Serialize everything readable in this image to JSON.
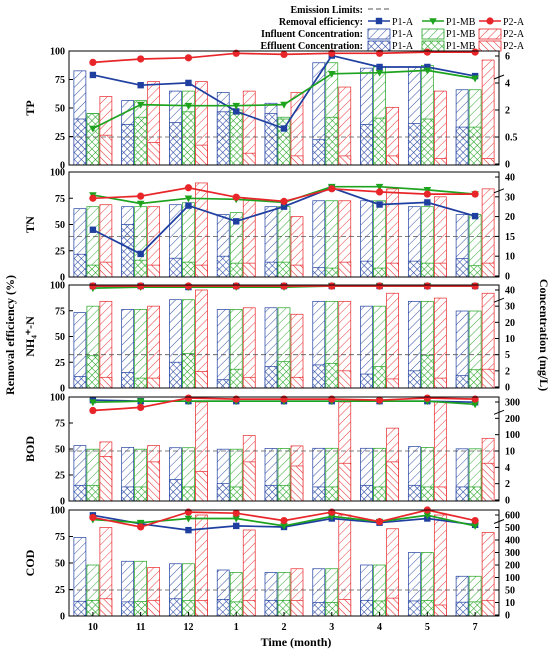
{
  "legend": {
    "emission_label": "Emission Limits:",
    "removal_label": "Removal efficiency:",
    "influent_label": "Influent Concentration:",
    "effluent_label": "Effluent Concentration:",
    "series_names": [
      "P1-A",
      "P1-MB",
      "P2-A"
    ]
  },
  "axes": {
    "left_title": "Removal efficiency (%)",
    "right_title": "Concentration (mg/L)",
    "x_title": "Time (month)"
  },
  "colors": {
    "P1-A": "#1f3fa0",
    "P1-MB": "#1ea31e",
    "P2-A": "#e8262a",
    "limit": "#555555"
  },
  "chart_data": {
    "type": "bar",
    "categories": [
      "10",
      "11",
      "12",
      "1",
      "2",
      "3",
      "4",
      "5",
      "7"
    ],
    "panels": [
      {
        "name": "TP",
        "left_ylim": [
          0,
          100
        ],
        "left_ticks": [
          "0",
          "25",
          "50",
          "75",
          "100"
        ],
        "right_ticks": [
          {
            "label": "6",
            "value": 6
          },
          {
            "label": "4",
            "value": 4
          },
          {
            "label": "2",
            "value": 2
          },
          {
            "label": "0.5",
            "value": 0.5
          },
          {
            "label": "0",
            "value": 0
          }
        ],
        "emission_limit": "0.5",
        "removal": {
          "P1-A": [
            79,
            70,
            72,
            47,
            32,
            96,
            86,
            86,
            78
          ],
          "P1-MB": [
            32,
            53,
            52,
            52,
            53,
            80,
            81,
            83,
            76
          ],
          "P2-A": [
            90,
            93,
            94,
            98,
            97,
            98,
            98,
            99,
            99
          ]
        },
        "influent": {
          "P1-A": [
            4.9,
            2.7,
            3.4,
            3.3,
            2.5,
            5.5,
            5.1,
            5.2,
            3.5
          ],
          "P1-MB": [
            1.8,
            2.7,
            3.4,
            2.0,
            1.6,
            5.5,
            5.2,
            5.3,
            3.5
          ],
          "P2-A": [
            3.0,
            4.1,
            4.1,
            3.4,
            3.3,
            3.7,
            2.2,
            3.4,
            5.7
          ]
        },
        "effluent": {
          "P1-A": [
            1.5,
            1.2,
            1.3,
            1.9,
            1.8,
            0.45,
            1.2,
            1.25,
            1.05
          ],
          "P1-MB": [
            1.8,
            1.6,
            1.9,
            1.85,
            1.5,
            1.6,
            1.55,
            1.5,
            1.05
          ],
          "P2-A": [
            0.6,
            0.4,
            0.35,
            0.2,
            0.15,
            0.15,
            0.15,
            0.1,
            0.1
          ]
        }
      },
      {
        "name": "TN",
        "left_ylim": [
          0,
          100
        ],
        "left_ticks": [
          "0",
          "25",
          "50",
          "75",
          "100"
        ],
        "right_ticks": [
          {
            "label": "40",
            "value": 40
          },
          {
            "label": "30",
            "value": 30
          },
          {
            "label": "20",
            "value": 20
          },
          {
            "label": "15",
            "value": 15
          },
          {
            "label": "10",
            "value": 10
          },
          {
            "label": "0",
            "value": 0
          }
        ],
        "emission_limit": "15",
        "removal": {
          "P1-A": [
            45,
            22,
            68,
            53,
            67,
            85,
            69,
            71,
            58
          ],
          "P1-MB": [
            78,
            70,
            75,
            74,
            71,
            86,
            86,
            83,
            79
          ],
          "P2-A": [
            75,
            77,
            85,
            76,
            72,
            84,
            81,
            79,
            79
          ]
        },
        "influent": {
          "P1-A": [
            24,
            25,
            26,
            21,
            25,
            28,
            28,
            25,
            21
          ],
          "P1-MB": [
            25,
            25,
            27,
            22,
            25,
            28,
            28,
            25,
            21
          ],
          "P2-A": [
            26,
            25,
            37,
            29,
            20,
            28,
            34,
            30,
            34
          ]
        },
        "effluent": {
          "P1-A": [
            10.5,
            18,
            9,
            10,
            7,
            4.2,
            7.5,
            7.5,
            8.8
          ],
          "P1-MB": [
            5.5,
            8,
            7,
            6.5,
            7,
            4,
            4,
            6.5,
            5.2
          ],
          "P2-A": [
            7,
            5.5,
            5.5,
            6.5,
            5.5,
            7,
            6.5,
            6.5,
            6.5
          ]
        }
      },
      {
        "name": "NH₄⁺-N",
        "left_ylim": [
          0,
          100
        ],
        "left_ticks": [
          "0",
          "25",
          "50",
          "75",
          "100"
        ],
        "right_ticks": [
          {
            "label": "40",
            "value": 40
          },
          {
            "label": "30",
            "value": 30
          },
          {
            "label": "20",
            "value": 20
          },
          {
            "label": "10",
            "value": 10
          },
          {
            "label": "5",
            "value": 5
          },
          {
            "label": "2",
            "value": 2
          },
          {
            "label": "0",
            "value": 0
          }
        ],
        "emission_limit": "5",
        "removal": {
          "P1-A": [
            99,
            99,
            98,
            99,
            99,
            99,
            99,
            99,
            99
          ],
          "P1-MB": [
            97,
            98,
            98,
            98,
            98,
            99,
            99,
            99,
            99
          ],
          "P2-A": [
            99,
            99,
            99,
            99,
            99,
            99,
            99,
            99,
            99
          ]
        },
        "influent": {
          "P1-A": [
            26,
            28,
            34,
            28,
            29,
            33,
            30,
            33,
            27
          ],
          "P1-MB": [
            30,
            28,
            34,
            28,
            29,
            33,
            30,
            33,
            27
          ],
          "P2-A": [
            33,
            30,
            40,
            29,
            25,
            33,
            38,
            35,
            38
          ]
        },
        "effluent": {
          "P1-A": [
            1.3,
            1.8,
            3.6,
            0.9,
            2.8,
            3.1,
            1.6,
            2.0,
            1.4
          ],
          "P1-MB": [
            4.8,
            1.1,
            5.4,
            2.3,
            3.7,
            3.4,
            2.8,
            4.9,
            2.2
          ],
          "P2-A": [
            1.2,
            1.1,
            1.9,
            1.2,
            1.2,
            2.0,
            1.0,
            1.1,
            2.3
          ]
        }
      },
      {
        "name": "BOD",
        "left_ylim": [
          0,
          100
        ],
        "left_ticks": [
          "0",
          "25",
          "50",
          "75",
          "100"
        ],
        "right_ticks": [
          {
            "label": "300",
            "value": 300
          },
          {
            "label": "200",
            "value": 200
          },
          {
            "label": "100",
            "value": 100
          },
          {
            "label": "10",
            "value": 10
          },
          {
            "label": "4",
            "value": 4
          },
          {
            "label": "2",
            "value": 2
          },
          {
            "label": "0",
            "value": 0
          }
        ],
        "emission_limit": "10",
        "removal": {
          "P1-A": [
            97,
            96,
            96,
            96,
            96,
            96,
            96,
            96,
            95
          ],
          "P1-MB": [
            95,
            96,
            96,
            96,
            96,
            96,
            96,
            96,
            93
          ],
          "P2-A": [
            87,
            90,
            99,
            98,
            98,
            98,
            97,
            99,
            98
          ]
        },
        "influent": {
          "P1-A": [
            40,
            30,
            28,
            20,
            24,
            25,
            25,
            34,
            22
          ],
          "P1-MB": [
            20,
            20,
            28,
            20,
            24,
            25,
            25,
            30,
            22
          ],
          "P2-A": [
            60,
            40,
            300,
            95,
            38,
            300,
            140,
            300,
            80
          ]
        },
        "effluent": {
          "P1-A": [
            1.8,
            1.6,
            2.5,
            2.0,
            1.8,
            1.6,
            1.8,
            1.8,
            1.6
          ],
          "P1-MB": [
            1.8,
            1.6,
            1.6,
            1.6,
            1.8,
            1.6,
            1.6,
            1.6,
            1.6
          ],
          "P2-A": [
            8,
            6,
            3.5,
            6,
            4.5,
            5.5,
            6,
            1.6,
            5.5
          ]
        }
      },
      {
        "name": "COD",
        "left_ylim": [
          0,
          100
        ],
        "left_ticks": [
          "0",
          "25",
          "50",
          "75",
          "100"
        ],
        "right_ticks": [
          {
            "label": "600",
            "value": 600
          },
          {
            "label": "500",
            "value": 500
          },
          {
            "label": "400",
            "value": 400
          },
          {
            "label": "300",
            "value": 300
          },
          {
            "label": "200",
            "value": 200
          },
          {
            "label": "100",
            "value": 100
          },
          {
            "label": "50",
            "value": 50
          },
          {
            "label": "10",
            "value": 10
          },
          {
            "label": "0",
            "value": 0
          }
        ],
        "emission_limit": "50",
        "removal": {
          "P1-A": [
            95,
            87,
            81,
            85,
            84,
            92,
            88,
            92,
            86
          ],
          "P1-MB": [
            91,
            88,
            92,
            92,
            85,
            94,
            89,
            95,
            85
          ],
          "P2-A": [
            93,
            84,
            98,
            97,
            90,
            98,
            89,
            100,
            90
          ]
        },
        "influent": {
          "P1-A": [
            420,
            230,
            210,
            160,
            140,
            170,
            200,
            300,
            110
          ],
          "P1-MB": [
            200,
            230,
            210,
            140,
            140,
            170,
            200,
            300,
            110
          ],
          "P2-A": [
            500,
            180,
            600,
            480,
            170,
            600,
            490,
            600,
            460
          ]
        },
        "effluent": {
          "P1-A": [
            14,
            12,
            22,
            20,
            17,
            10,
            17,
            15,
            11
          ],
          "P1-MB": [
            17,
            13,
            16,
            12,
            17,
            10,
            15,
            16,
            12
          ],
          "P2-A": [
            22,
            17,
            16,
            17,
            16,
            20,
            24,
            8,
            17
          ]
        }
      }
    ]
  }
}
